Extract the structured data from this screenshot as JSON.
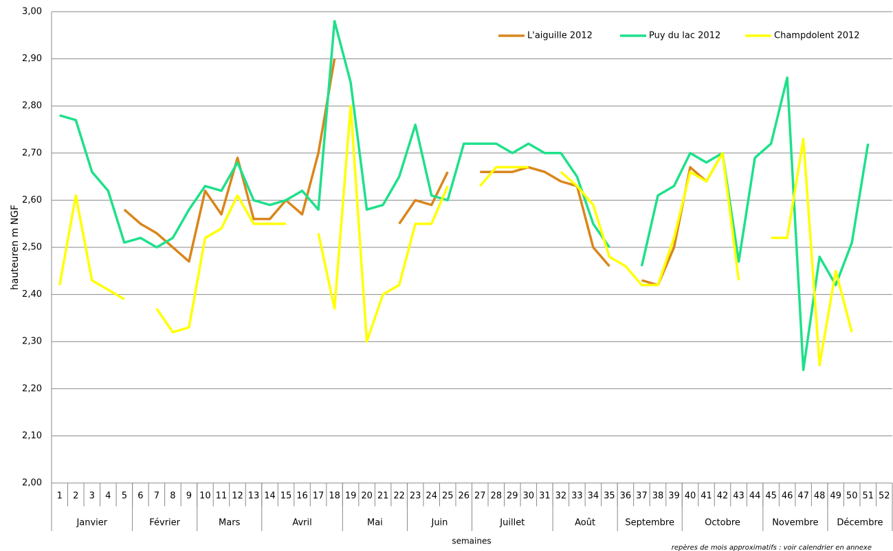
{
  "chart_data": {
    "type": "line",
    "y_label": "hauteuren m NGF",
    "x_label": "semaines",
    "note": "repères de mois approximatifs : voir calendrier en annexe",
    "categories": [
      "1",
      "2",
      "3",
      "4",
      "5",
      "6",
      "7",
      "8",
      "9",
      "10",
      "11",
      "12",
      "13",
      "14",
      "15",
      "16",
      "17",
      "18",
      "19",
      "20",
      "21",
      "22",
      "23",
      "24",
      "25",
      "26",
      "27",
      "28",
      "29",
      "30",
      "31",
      "32",
      "33",
      "34",
      "35",
      "36",
      "37",
      "38",
      "39",
      "40",
      "41",
      "42",
      "43",
      "44",
      "45",
      "46",
      "47",
      "48",
      "49",
      "50",
      "51",
      "52"
    ],
    "x_groups": [
      {
        "label": "Janvier",
        "from": 1,
        "to": 5
      },
      {
        "label": "Février",
        "from": 6,
        "to": 9
      },
      {
        "label": "Mars",
        "from": 10,
        "to": 13
      },
      {
        "label": "Avril",
        "from": 14,
        "to": 18
      },
      {
        "label": "Mai",
        "from": 19,
        "to": 22
      },
      {
        "label": "Juin",
        "from": 23,
        "to": 26
      },
      {
        "label": "Juillet",
        "from": 27,
        "to": 31
      },
      {
        "label": "Août",
        "from": 32,
        "to": 35
      },
      {
        "label": "Septembre",
        "from": 36,
        "to": 39
      },
      {
        "label": "Octobre",
        "from": 40,
        "to": 44
      },
      {
        "label": "Novembre",
        "from": 45,
        "to": 48
      },
      {
        "label": "Décembre",
        "from": 49,
        "to": 52
      }
    ],
    "series": [
      {
        "name": "L'aiguille 2012",
        "color": "#d9861c",
        "values": [
          null,
          null,
          null,
          null,
          2.58,
          2.55,
          2.53,
          2.5,
          2.47,
          2.62,
          2.57,
          2.69,
          2.56,
          2.56,
          2.6,
          2.57,
          2.7,
          2.9,
          null,
          null,
          null,
          2.55,
          2.6,
          2.59,
          2.66,
          null,
          2.66,
          2.66,
          2.66,
          2.67,
          2.66,
          2.64,
          2.63,
          2.5,
          2.46,
          null,
          2.43,
          2.42,
          2.5,
          2.67,
          2.64,
          2.7,
          null,
          null,
          null,
          null,
          null,
          null,
          null,
          null,
          null,
          null
        ]
      },
      {
        "name": "Puy du lac 2012",
        "color": "#1ee08a",
        "values": [
          2.78,
          2.77,
          2.66,
          2.62,
          2.51,
          2.52,
          2.5,
          2.52,
          2.58,
          2.63,
          2.62,
          2.68,
          2.6,
          2.59,
          2.6,
          2.62,
          2.58,
          2.98,
          2.85,
          2.58,
          2.59,
          2.65,
          2.76,
          2.61,
          2.6,
          2.72,
          2.72,
          2.72,
          2.7,
          2.72,
          2.7,
          2.7,
          2.65,
          2.55,
          2.5,
          null,
          2.46,
          2.61,
          2.63,
          2.7,
          2.68,
          2.7,
          2.47,
          2.69,
          2.72,
          2.86,
          2.24,
          2.48,
          2.42,
          2.51,
          2.72,
          null
        ]
      },
      {
        "name": "Champdolent 2012",
        "color": "#ffff00",
        "values": [
          2.42,
          2.61,
          2.43,
          2.41,
          2.39,
          null,
          2.37,
          2.32,
          2.33,
          2.52,
          2.54,
          2.61,
          2.55,
          2.55,
          2.55,
          null,
          2.53,
          2.37,
          2.8,
          2.3,
          2.4,
          2.42,
          2.55,
          2.55,
          2.63,
          null,
          2.63,
          2.67,
          2.67,
          2.67,
          null,
          2.66,
          2.63,
          2.59,
          2.48,
          2.46,
          2.42,
          2.42,
          2.52,
          2.66,
          2.64,
          2.7,
          2.43,
          null,
          2.52,
          2.52,
          2.73,
          2.25,
          2.45,
          2.32,
          null,
          null
        ]
      }
    ],
    "ylim": [
      2.0,
      3.0
    ],
    "yticks": [
      {
        "value": 2.0,
        "label": "2,00"
      },
      {
        "value": 2.1,
        "label": "2,10"
      },
      {
        "value": 2.2,
        "label": "2,20"
      },
      {
        "value": 2.3,
        "label": "2,30"
      },
      {
        "value": 2.4,
        "label": "2,40"
      },
      {
        "value": 2.5,
        "label": "2,50"
      },
      {
        "value": 2.6,
        "label": "2,60"
      },
      {
        "value": 2.7,
        "label": "2,70"
      },
      {
        "value": 2.8,
        "label": "2,80"
      },
      {
        "value": 2.9,
        "label": "2,90"
      },
      {
        "value": 3.0,
        "label": "3,00"
      }
    ],
    "grid": true,
    "legend": "top-right"
  }
}
